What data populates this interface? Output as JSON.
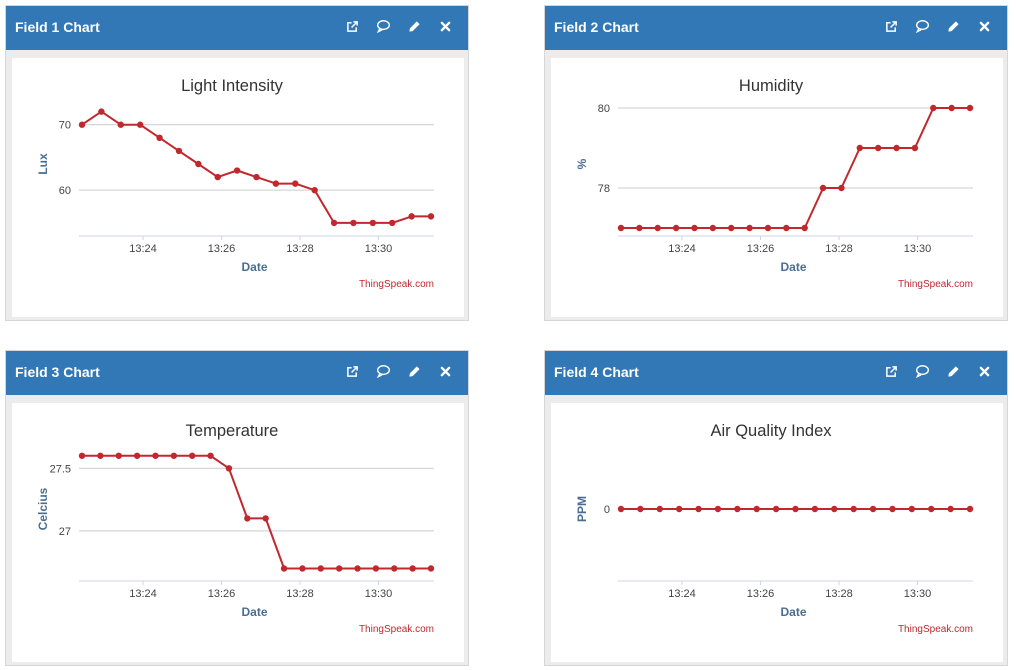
{
  "credit": "ThingSpeak.com",
  "colors": {
    "header": "#3278b6",
    "line": "#c0282e",
    "axis_title": "#4a6e93"
  },
  "header_icons": [
    "external-link-icon",
    "comment-icon",
    "pencil-icon",
    "close-icon"
  ],
  "panels": [
    {
      "header": "Field 1 Chart",
      "chart_data": {
        "type": "line",
        "title": "Light Intensity",
        "xlabel": "Date",
        "ylabel": "Lux",
        "x_ticks": [
          "13:24",
          "13:26",
          "13:28",
          "13:30"
        ],
        "y_ticks": [
          "70",
          "60"
        ],
        "ylim": [
          53,
          75
        ],
        "series": [
          {
            "values": [
              70,
              72,
              70,
              70,
              68,
              66,
              64,
              62,
              63,
              62,
              61,
              61,
              60,
              55,
              55,
              55,
              55,
              56,
              56
            ]
          }
        ]
      }
    },
    {
      "header": "Field 2 Chart",
      "chart_data": {
        "type": "line",
        "title": "Humidity",
        "xlabel": "Date",
        "ylabel": "%",
        "x_ticks": [
          "13:24",
          "13:26",
          "13:28",
          "13:30"
        ],
        "y_ticks": [
          "80",
          "78"
        ],
        "ylim": [
          76.8,
          80.4
        ],
        "series": [
          {
            "values": [
              77,
              77,
              77,
              77,
              77,
              77,
              77,
              77,
              77,
              77,
              77,
              78,
              78,
              79,
              79,
              79,
              79,
              80,
              80,
              80
            ]
          }
        ]
      }
    },
    {
      "header": "Field 3 Chart",
      "chart_data": {
        "type": "line",
        "title": "Temperature",
        "xlabel": "Date",
        "ylabel": "Celcius",
        "x_ticks": [
          "13:24",
          "13:26",
          "13:28",
          "13:30"
        ],
        "y_ticks": [
          "27.5",
          "27"
        ],
        "ylim": [
          26.6,
          27.75
        ],
        "series": [
          {
            "values": [
              27.6,
              27.6,
              27.6,
              27.6,
              27.6,
              27.6,
              27.6,
              27.6,
              27.5,
              27.1,
              27.1,
              26.7,
              26.7,
              26.7,
              26.7,
              26.7,
              26.7,
              26.7,
              26.7,
              26.7
            ]
          }
        ]
      }
    },
    {
      "header": "Field 4 Chart",
      "chart_data": {
        "type": "line",
        "title": "Air Quality Index",
        "xlabel": "Date",
        "ylabel": "PPM",
        "x_ticks": [
          "13:24",
          "13:26",
          "13:28",
          "13:30"
        ],
        "y_ticks": [
          "0"
        ],
        "ylim": [
          -1,
          1
        ],
        "series": [
          {
            "values": [
              0,
              0,
              0,
              0,
              0,
              0,
              0,
              0,
              0,
              0,
              0,
              0,
              0,
              0,
              0,
              0,
              0,
              0,
              0
            ]
          }
        ]
      }
    }
  ]
}
